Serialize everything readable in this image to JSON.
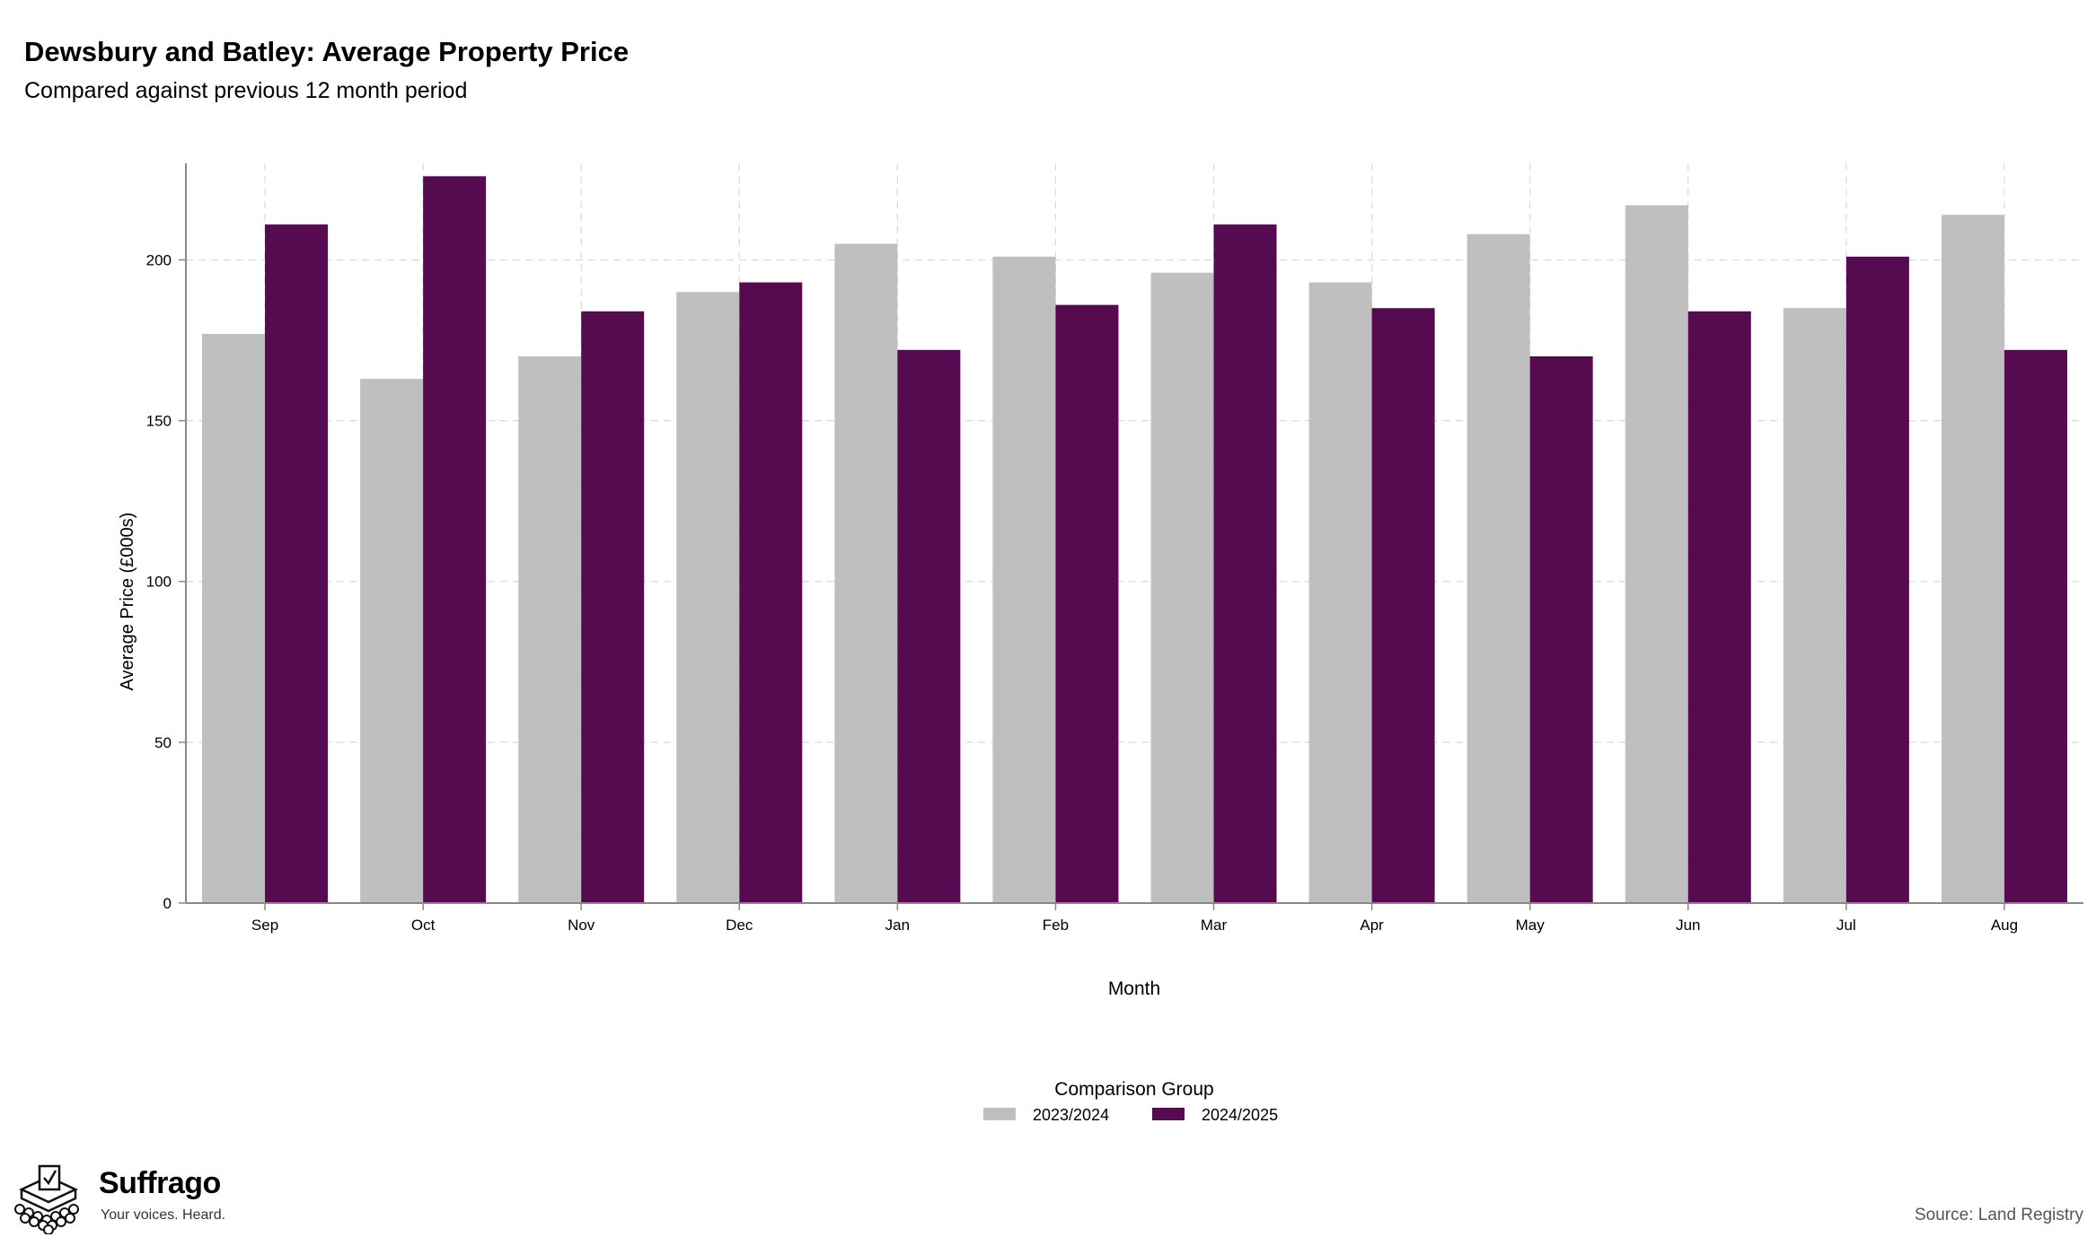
{
  "chart_data": {
    "type": "bar",
    "title": "Dewsbury and Batley: Average Property Price",
    "subtitle": "Compared against previous 12 month period",
    "xlabel": "Month",
    "ylabel": "Average Price (£000s)",
    "categories": [
      "Sep",
      "Oct",
      "Nov",
      "Dec",
      "Jan",
      "Feb",
      "Mar",
      "Apr",
      "May",
      "Jun",
      "Jul",
      "Aug"
    ],
    "series": [
      {
        "name": "2023/2024",
        "color": "#bfbfbf",
        "values": [
          177,
          163,
          170,
          190,
          205,
          201,
          196,
          193,
          208,
          217,
          185,
          214
        ]
      },
      {
        "name": "2024/2025",
        "color": "#560b51",
        "values": [
          211,
          226,
          184,
          193,
          172,
          186,
          211,
          185,
          170,
          184,
          201,
          172
        ]
      }
    ],
    "ylim": [
      0,
      230
    ],
    "yticks": [
      0,
      50,
      100,
      150,
      200
    ],
    "grid": true,
    "legend": {
      "title": "Comparison Group",
      "position": "bottom"
    }
  },
  "brand": {
    "name": "Suffrago",
    "tagline": "Your voices. Heard.",
    "logo_icon": "ballot-box-icon"
  },
  "source": "Source: Land Registry"
}
